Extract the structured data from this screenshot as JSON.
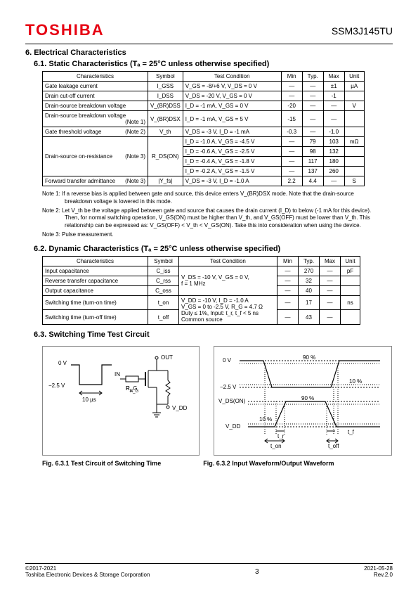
{
  "header": {
    "logo": "TOSHIBA",
    "partno": "SSM3J145TU"
  },
  "sec6": {
    "title": "6.  Electrical Characteristics",
    "s61": {
      "title": "6.1.  Static Characteristics (Tₐ = 25°C unless otherwise specified)",
      "cols": [
        "Characteristics",
        "Symbol",
        "Test Condition",
        "Min",
        "Typ.",
        "Max",
        "Unit"
      ],
      "rows": [
        {
          "char": "Gate leakage current",
          "note": "",
          "sym": "I_GSS",
          "cond": "V_GS = -8/+6 V, V_DS = 0 V",
          "min": "—",
          "typ": "—",
          "max": "±1",
          "unit": "µA"
        },
        {
          "char": "Drain cut-off current",
          "note": "",
          "sym": "I_DSS",
          "cond": "V_DS = -20 V, V_GS = 0 V",
          "min": "—",
          "typ": "—",
          "max": "-1",
          "unit": ""
        },
        {
          "char": "Drain-source breakdown voltage",
          "note": "",
          "sym": "V_(BR)DSS",
          "cond": "I_D = -1 mA, V_GS = 0 V",
          "min": "-20",
          "typ": "—",
          "max": "—",
          "unit": "V"
        },
        {
          "char": "Drain-source breakdown voltage",
          "note": "(Note 1)",
          "sym": "V_(BR)DSX",
          "cond": "I_D = -1 mA, V_GS = 5 V",
          "min": "-15",
          "typ": "—",
          "max": "—",
          "unit": ""
        },
        {
          "char": "Gate threshold voltage",
          "note": "(Note 2)",
          "sym": "V_th",
          "cond": "V_DS = -3 V, I_D = -1 mA",
          "min": "-0.3",
          "typ": "—",
          "max": "-1.0",
          "unit": ""
        },
        {
          "char": "Drain-source on-resistance",
          "note": "(Note 3)",
          "sym": "R_DS(ON)",
          "cond": "I_D = -1.0 A, V_GS = -4.5 V",
          "min": "—",
          "typ": "79",
          "max": "103",
          "unit": "mΩ",
          "rowspan": 4
        },
        {
          "cond": "I_D = -0.6 A, V_GS = -2.5 V",
          "min": "—",
          "typ": "98",
          "max": "132",
          "unit": ""
        },
        {
          "cond": "I_D = -0.4 A, V_GS = -1.8 V",
          "min": "—",
          "typ": "117",
          "max": "180",
          "unit": ""
        },
        {
          "cond": "I_D = -0.2 A, V_GS = -1.5 V",
          "min": "—",
          "typ": "137",
          "max": "260",
          "unit": ""
        },
        {
          "char": "Forward transfer admittance",
          "note": "(Note 3)",
          "sym": "|Y_fs|",
          "cond": "V_DS = -3 V, I_D = -1.0 A",
          "min": "2.2",
          "typ": "4.4",
          "max": "—",
          "unit": "S"
        }
      ],
      "notes": [
        "Note 1: If a reverse bias is applied between gate and source, this device enters V_(BR)DSX mode. Note that the drain-source breakdown voltage is lowered in this mode.",
        "Note 2: Let V_th be the voltage applied between gate and source that causes the drain current (I_D) to below (-1 mA for this device). Then, for normal switching operation, V_GS(ON) must be higher than V_th, and V_GS(OFF) must be lower than V_th. This relationship can be expressed as: V_GS(OFF) < V_th < V_GS(ON). Take this into consideration when using the device.",
        "Note 3: Pulse measurement."
      ]
    },
    "s62": {
      "title": "6.2.  Dynamic Characteristics (Tₐ = 25°C unless otherwise specified)",
      "cols": [
        "Characteristics",
        "Symbol",
        "Test Condition",
        "Min",
        "Typ.",
        "Max",
        "Unit"
      ],
      "rows": [
        {
          "char": "Input capacitance",
          "sym": "C_iss",
          "cond": "V_DS = -10 V, V_GS = 0 V,\nf = 1 MHz",
          "min": "—",
          "typ": "270",
          "max": "—",
          "unit": "pF",
          "condrowspan": 3
        },
        {
          "char": "Reverse transfer capacitance",
          "sym": "C_rss",
          "min": "—",
          "typ": "32",
          "max": "—",
          "unit": ""
        },
        {
          "char": "Output capacitance",
          "sym": "C_oss",
          "min": "—",
          "typ": "40",
          "max": "—",
          "unit": ""
        },
        {
          "char": "Switching time (turn-on time)",
          "sym": "t_on",
          "cond": "V_DD = -10 V, I_D = -1.0 A\nV_GS = 0 to -2.5 V, R_G = 4.7 Ω\nDuty ≤ 1%, Input: t_r, t_f < 5 ns\nCommon source",
          "min": "—",
          "typ": "17",
          "max": "—",
          "unit": "ns",
          "condrowspan": 2
        },
        {
          "char": "Switching time (turn-off time)",
          "sym": "t_off",
          "min": "—",
          "typ": "43",
          "max": "—",
          "unit": ""
        }
      ]
    },
    "s63": {
      "title": "6.3.  Switching Time Test Circuit",
      "fig1": {
        "caption": "Fig. 6.3.1   Test Circuit of Switching Time",
        "labels": {
          "v1": "0 V",
          "v2": "−2.5 V",
          "t": "10 µs",
          "in": "IN",
          "out": "OUT",
          "rg": "R_G",
          "vdd": "V_DD"
        }
      },
      "fig2": {
        "caption": "Fig. 6.3.2   Input Waveform/Output Waveform",
        "labels": {
          "v0": "0 V",
          "v25": "−2.5 V",
          "vdson": "V_DS(ON)",
          "vdd": "V_DD",
          "p90a": "90 %",
          "p10a": "10 %",
          "p90b": "90 %",
          "p10b": "10 %",
          "tr": "t_r",
          "tf": "t_f",
          "ton": "t_on",
          "toff": "t_off"
        }
      }
    }
  },
  "footer": {
    "copyright": "©2017-2021",
    "company": "Toshiba Electronic Devices & Storage Corporation",
    "page": "3",
    "date": "2021-05-28",
    "rev": "Rev.2.0"
  },
  "colors": {
    "logo": "#e60012",
    "text": "#000000",
    "border": "#000000",
    "figborder": "#888888"
  }
}
